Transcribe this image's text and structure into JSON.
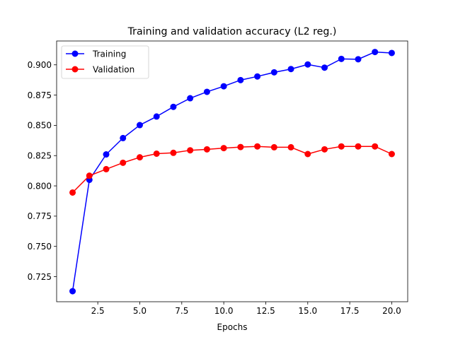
{
  "chart_data": {
    "type": "line",
    "title": "Training and validation accuracy (L2 reg.)",
    "xlabel": "Epochs",
    "ylabel": "",
    "xlim": [
      0.05,
      20.95
    ],
    "ylim": [
      0.7043,
      0.9197
    ],
    "xticks": [
      2.5,
      5.0,
      7.5,
      10.0,
      12.5,
      15.0,
      17.5,
      20.0
    ],
    "xtick_labels": [
      "2.5",
      "5.0",
      "7.5",
      "10.0",
      "12.5",
      "15.0",
      "17.5",
      "20.0"
    ],
    "yticks": [
      0.725,
      0.75,
      0.775,
      0.8,
      0.825,
      0.85,
      0.875,
      0.9
    ],
    "ytick_labels": [
      "0.725",
      "0.750",
      "0.775",
      "0.800",
      "0.825",
      "0.850",
      "0.875",
      "0.900"
    ],
    "grid": false,
    "legend_position": "upper-left",
    "x": [
      1,
      2,
      3,
      4,
      5,
      6,
      7,
      8,
      9,
      10,
      11,
      12,
      13,
      14,
      15,
      16,
      17,
      18,
      19,
      20
    ],
    "series": [
      {
        "name": "Training",
        "color": "#0000ff",
        "marker": "circle",
        "values": [
          0.713,
          0.805,
          0.826,
          0.8395,
          0.8502,
          0.8573,
          0.8653,
          0.8724,
          0.8777,
          0.8823,
          0.8874,
          0.8904,
          0.8938,
          0.8965,
          0.9003,
          0.8977,
          0.9049,
          0.9046,
          0.9106,
          0.9098
        ]
      },
      {
        "name": "Validation",
        "color": "#ff0000",
        "marker": "circle",
        "values": [
          0.7945,
          0.8084,
          0.8138,
          0.8191,
          0.8236,
          0.8266,
          0.8273,
          0.8294,
          0.8302,
          0.8312,
          0.8321,
          0.8326,
          0.8319,
          0.8319,
          0.8263,
          0.8302,
          0.8326,
          0.8326,
          0.8326,
          0.8263
        ]
      }
    ]
  }
}
